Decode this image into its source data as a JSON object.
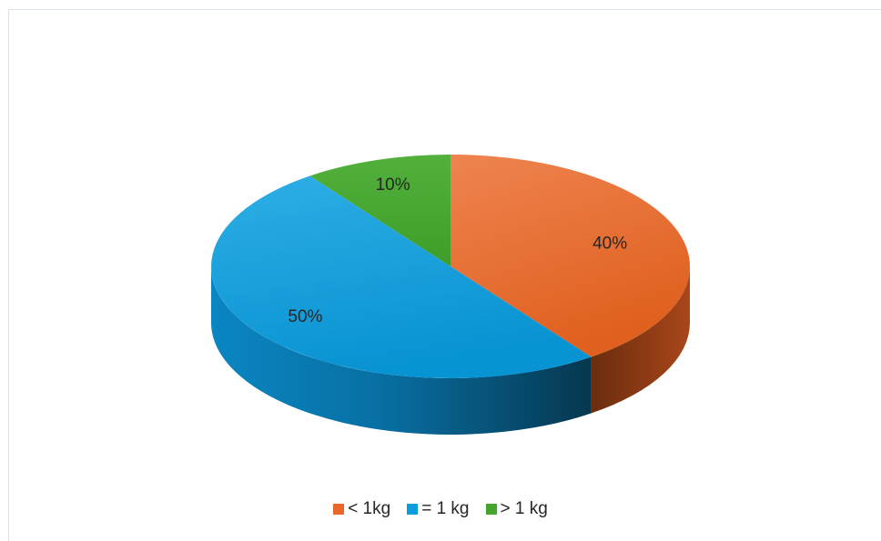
{
  "chart_data": {
    "type": "pie",
    "style": "3d",
    "title": "",
    "categories": [
      "< 1kg",
      "= 1 kg",
      "> 1 kg"
    ],
    "values": [
      40,
      50,
      10
    ],
    "labels": [
      "40%",
      "50%",
      "10%"
    ],
    "colors": [
      "#e8672b",
      "#0a9ddc",
      "#43a52e"
    ],
    "legend_position": "bottom",
    "start_angle_deg": 0,
    "direction": "clockwise"
  },
  "legend": [
    {
      "label": "< 1kg",
      "color": "#e8672b"
    },
    {
      "label": "= 1 kg",
      "color": "#0a9ddc"
    },
    {
      "label": "> 1 kg",
      "color": "#43a52e"
    }
  ]
}
